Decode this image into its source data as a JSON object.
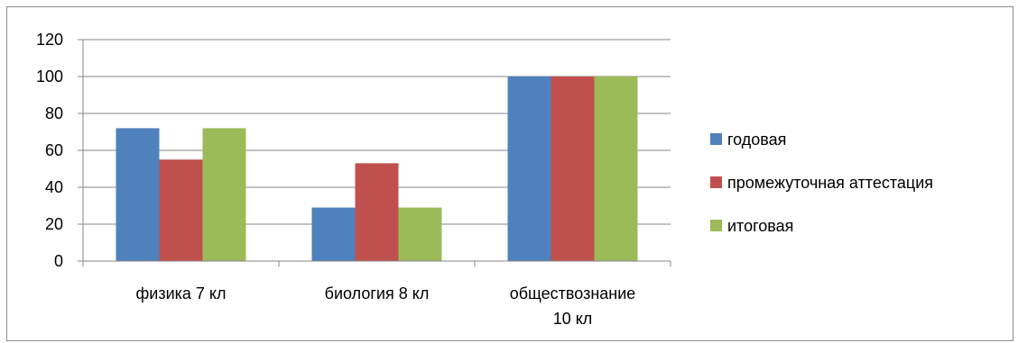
{
  "chart_data": {
    "type": "bar",
    "categories": [
      "физика 7 кл",
      "биология 8 кл",
      "обществознание 10 кл"
    ],
    "category_lines": [
      [
        "физика 7 кл"
      ],
      [
        "биология 8 кл"
      ],
      [
        "обществознание",
        "10 кл"
      ]
    ],
    "series": [
      {
        "name": "годовая",
        "color": "#4f81bd",
        "values": [
          72,
          29,
          100
        ]
      },
      {
        "name": "промежуточная аттестация",
        "color": "#c0504d",
        "values": [
          55,
          53,
          100
        ]
      },
      {
        "name": "итоговая",
        "color": "#9bbb59",
        "values": [
          72,
          29,
          100
        ]
      }
    ],
    "ylim": [
      0,
      120
    ],
    "yticks": [
      0,
      20,
      40,
      60,
      80,
      100,
      120
    ],
    "grid": true,
    "legend_position": "right",
    "title": "",
    "xlabel": "",
    "ylabel": ""
  }
}
